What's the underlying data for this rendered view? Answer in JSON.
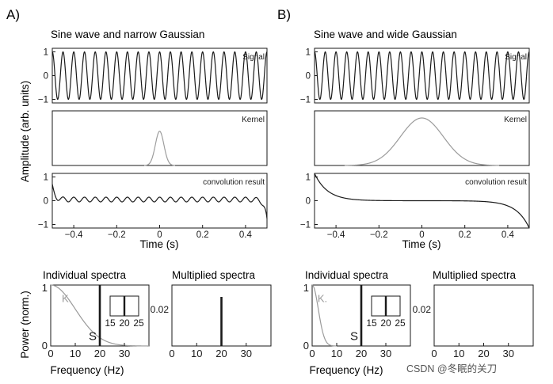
{
  "panel_labels": {
    "a": "A)",
    "b": "B)"
  },
  "shared": {
    "ylabel_top": "Amplitude (arb. units)",
    "ylabel_bottom": "Power (norm.)",
    "time_xlabel": "Time (s)",
    "freq_xlabel": "Frequency (Hz)",
    "watermark": "CSDN @冬眠的关刀"
  },
  "colors": {
    "signal": "#1a1a1a",
    "kernel": "#9a9a9a",
    "axis": "#1a1a1a"
  },
  "chart_data": [
    {
      "id": "A_time",
      "type": "line",
      "title": "Sine wave and narrow Gaussian",
      "xlabel": "Time (s)",
      "xlim": [
        -0.5,
        0.5
      ],
      "xticks": [
        -0.4,
        -0.2,
        0,
        0.2,
        0.4
      ],
      "xtick_labels": [
        "−0.4",
        "−0.2",
        "0",
        "0.2",
        "0.4"
      ],
      "subplots": [
        {
          "name": "signal",
          "label": "Signal",
          "ylim": [
            -1.15,
            1.15
          ],
          "yticks": [
            -1,
            0,
            1
          ],
          "yticklabels": [
            "−1",
            "0",
            "1"
          ],
          "frequency_hz": 20,
          "amplitude": 1
        },
        {
          "name": "kernel",
          "label": "Kernel",
          "ylim": [
            0,
            1.15
          ],
          "gaussian_center_s": 0,
          "gaussian_sigma_s": 0.02,
          "peak": 0.72
        },
        {
          "name": "convolution",
          "label": "convolution result",
          "ylim": [
            -1.15,
            1.15
          ],
          "yticks": [
            -1,
            0,
            1
          ],
          "yticklabels": [
            "−1",
            "0",
            "1"
          ],
          "ripple_amplitude": 0.1,
          "ripple_frequency_hz": 20,
          "offset": 0.05,
          "edge_left": 0.6,
          "edge_right": -0.85
        }
      ]
    },
    {
      "id": "B_time",
      "type": "line",
      "title": "Sine wave and wide Gaussian",
      "xlabel": "Time (s)",
      "xlim": [
        -0.5,
        0.5
      ],
      "xticks": [
        -0.4,
        -0.2,
        0,
        0.2,
        0.4
      ],
      "xtick_labels": [
        "−0.4",
        "−0.2",
        "0",
        "0.2",
        "0.4"
      ],
      "subplots": [
        {
          "name": "signal",
          "label": "Signal",
          "ylim": [
            -1.15,
            1.15
          ],
          "yticks": [
            -1,
            0,
            1
          ],
          "yticklabels": [
            "−1",
            "0",
            "1"
          ],
          "frequency_hz": 20,
          "amplitude": 1
        },
        {
          "name": "kernel",
          "label": "Kernel",
          "ylim": [
            0,
            1.15
          ],
          "gaussian_center_s": 0,
          "gaussian_sigma_s": 0.1,
          "peak": 1.0
        },
        {
          "name": "convolution",
          "label": "convolution result",
          "ylim": [
            -1.15,
            1.15
          ],
          "yticks": [
            -1,
            0,
            1
          ],
          "yticklabels": [
            "−1",
            "0",
            "1"
          ],
          "ripple_amplitude": 0.0,
          "offset": 0.0,
          "edge_left": 1.15,
          "edge_right": -1.15
        }
      ]
    },
    {
      "id": "A_spectra",
      "type": "line",
      "titles": [
        "Individual spectra",
        "Multiplied spectra"
      ],
      "xlabel": "Frequency (Hz)",
      "individual": {
        "xlim": [
          0,
          40
        ],
        "xticks": [
          0,
          10,
          20,
          30
        ],
        "ylim": [
          0,
          1
        ],
        "yticks": [
          0,
          1
        ],
        "kernel_label": "K.",
        "signal_label": "S",
        "signal_peak_hz": 20,
        "kernel_gaussian_sigma_hz": 10,
        "inset": {
          "xticks": [
            15,
            20,
            25
          ],
          "peak_hz": 20
        }
      },
      "multiplied": {
        "xlim": [
          0,
          40
        ],
        "xticks": [
          0,
          10,
          20,
          30
        ],
        "ytick": 0.02,
        "peak_hz": 20,
        "peak_visible": true
      }
    },
    {
      "id": "B_spectra",
      "type": "line",
      "titles": [
        "Individual spectra",
        "Multiplied spectra"
      ],
      "xlabel": "Frequency (Hz)",
      "individual": {
        "xlim": [
          0,
          40
        ],
        "xticks": [
          0,
          10,
          20,
          30
        ],
        "ylim": [
          0,
          1
        ],
        "yticks": [
          0,
          1
        ],
        "kernel_label": "K.",
        "signal_label": "S",
        "signal_peak_hz": 20,
        "kernel_gaussian_sigma_hz": 2.5,
        "inset": {
          "xticks": [
            15,
            20,
            25
          ],
          "peak_hz": 20
        }
      },
      "multiplied": {
        "xlim": [
          0,
          40
        ],
        "xticks": [
          0,
          10,
          20,
          30
        ],
        "ytick": 0.02,
        "peak_hz": 20,
        "peak_visible": false
      }
    }
  ]
}
